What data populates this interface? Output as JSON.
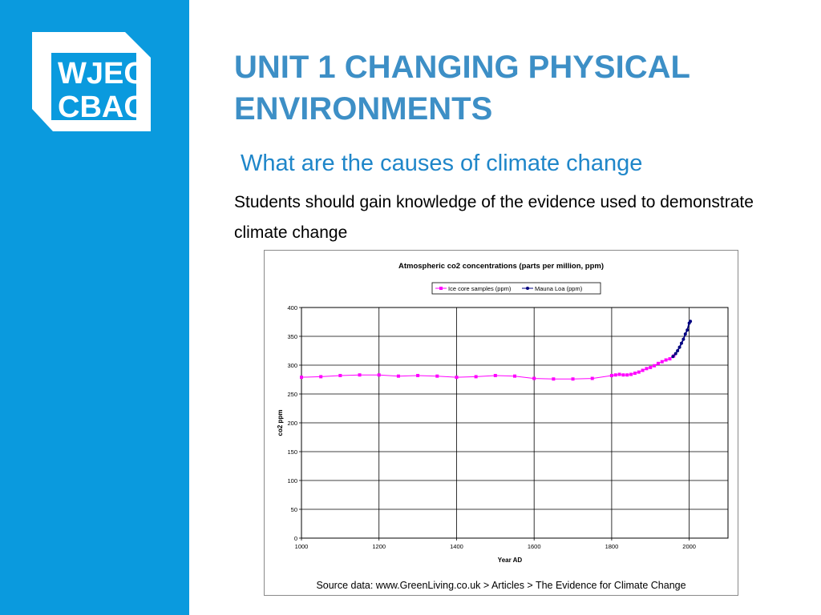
{
  "slide": {
    "title": "UNIT 1 CHANGING PHYSICAL ENVIRONMENTS",
    "subtitle": "What are the causes of climate change",
    "body": "Students should gain knowledge of the evidence used to demonstrate climate change"
  },
  "logo": {
    "line1": "WJEC",
    "line2": "CBAC",
    "color": "#ffffff"
  },
  "colors": {
    "sidebar": "#0a9ade",
    "title": "#3d8fc6",
    "subtitle": "#1f86c9"
  },
  "chart_data": {
    "type": "line",
    "title": "Atmospheric co2 concentrations (parts per million, ppm)",
    "xlabel": "Year AD",
    "ylabel": "co2 ppm",
    "xlim": [
      1000,
      2100
    ],
    "ylim": [
      0,
      400
    ],
    "x_ticks": [
      1000,
      1200,
      1400,
      1600,
      1800,
      2000
    ],
    "y_ticks": [
      0,
      50,
      100,
      150,
      200,
      250,
      300,
      350,
      400
    ],
    "grid": true,
    "legend_position": "top-center",
    "source": "Source data: www.GreenLiving.co.uk > Articles > The Evidence for Climate Change",
    "series": [
      {
        "name": "Ice core samples (ppm)",
        "color": "#ff00ff",
        "points": [
          [
            1000,
            279
          ],
          [
            1050,
            280
          ],
          [
            1100,
            282
          ],
          [
            1150,
            283
          ],
          [
            1200,
            283
          ],
          [
            1250,
            281
          ],
          [
            1300,
            282
          ],
          [
            1350,
            281
          ],
          [
            1400,
            279
          ],
          [
            1450,
            280
          ],
          [
            1500,
            282
          ],
          [
            1550,
            281
          ],
          [
            1600,
            277
          ],
          [
            1650,
            276
          ],
          [
            1700,
            276
          ],
          [
            1750,
            277
          ],
          [
            1800,
            282
          ],
          [
            1810,
            283
          ],
          [
            1820,
            284
          ],
          [
            1830,
            283
          ],
          [
            1840,
            283
          ],
          [
            1850,
            284
          ],
          [
            1860,
            286
          ],
          [
            1870,
            288
          ],
          [
            1880,
            291
          ],
          [
            1890,
            294
          ],
          [
            1900,
            296
          ],
          [
            1910,
            299
          ],
          [
            1920,
            303
          ],
          [
            1930,
            306
          ],
          [
            1940,
            309
          ],
          [
            1950,
            311
          ],
          [
            1960,
            316
          ]
        ]
      },
      {
        "name": "Mauna Loa (ppm)",
        "color": "#000080",
        "points": [
          [
            1958,
            315
          ],
          [
            1965,
            320
          ],
          [
            1970,
            325
          ],
          [
            1975,
            331
          ],
          [
            1980,
            338
          ],
          [
            1985,
            345
          ],
          [
            1990,
            354
          ],
          [
            1995,
            361
          ],
          [
            2000,
            373
          ],
          [
            2003,
            376
          ]
        ]
      }
    ]
  }
}
